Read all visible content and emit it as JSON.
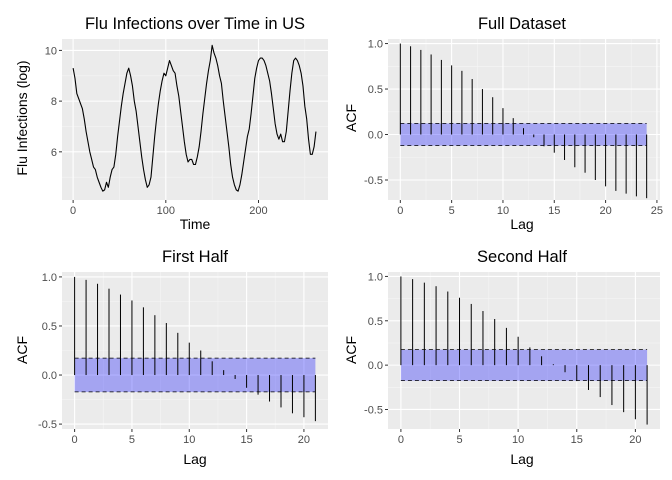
{
  "chart_data": [
    {
      "type": "line",
      "title": "Flu Infections over Time in US",
      "xlabel": "Time",
      "ylabel": "Flu Infections (log)",
      "xlim": [
        -12,
        275
      ],
      "ylim": [
        4.1,
        10.45
      ],
      "xticks": [
        0,
        100,
        200
      ],
      "yticks": [
        6,
        8,
        10
      ],
      "grid": true,
      "line_color": "#000000",
      "series": [
        {
          "x": [
            0,
            2,
            4,
            6,
            8,
            10,
            12,
            14,
            16,
            18,
            20,
            22,
            24,
            26,
            28,
            30,
            32,
            34,
            36,
            38,
            40,
            42,
            44,
            46,
            48,
            50,
            52,
            54,
            56,
            58,
            60,
            62,
            64,
            66,
            68,
            70,
            72,
            74,
            76,
            78,
            80,
            82,
            84,
            86,
            88,
            90,
            92,
            94,
            96,
            98,
            100,
            102,
            104,
            106,
            108,
            110,
            112,
            114,
            116,
            118,
            120,
            122,
            124,
            126,
            128,
            130,
            132,
            134,
            136,
            138,
            140,
            142,
            144,
            146,
            148,
            150,
            152,
            154,
            156,
            158,
            160,
            162,
            164,
            166,
            168,
            170,
            172,
            174,
            176,
            178,
            180,
            182,
            184,
            186,
            188,
            190,
            192,
            194,
            196,
            198,
            200,
            202,
            204,
            206,
            208,
            210,
            212,
            214,
            216,
            218,
            220,
            222,
            224,
            226,
            228,
            230,
            232,
            234,
            236,
            238,
            240,
            242,
            244,
            246,
            248,
            250,
            252,
            254,
            256,
            258,
            260,
            262
          ],
          "y": [
            9.3,
            8.9,
            8.3,
            8.1,
            7.9,
            7.7,
            7.3,
            6.8,
            6.4,
            6.0,
            5.7,
            5.4,
            5.3,
            5.0,
            4.8,
            4.6,
            4.45,
            4.5,
            4.8,
            4.6,
            5.0,
            5.3,
            5.4,
            5.9,
            6.6,
            7.2,
            7.8,
            8.3,
            8.7,
            9.1,
            9.3,
            9.0,
            8.6,
            8.0,
            7.6,
            7.0,
            6.4,
            5.8,
            5.3,
            4.9,
            4.6,
            4.7,
            5.0,
            5.8,
            6.6,
            7.3,
            7.9,
            8.4,
            8.8,
            9.1,
            9.0,
            9.3,
            9.6,
            9.4,
            9.2,
            9.1,
            8.6,
            8.2,
            7.6,
            7.0,
            6.4,
            5.9,
            5.6,
            5.7,
            5.7,
            5.5,
            5.5,
            5.8,
            6.2,
            6.8,
            7.5,
            8.1,
            8.7,
            9.2,
            9.6,
            10.2,
            9.9,
            9.7,
            9.4,
            9.0,
            8.7,
            8.0,
            7.4,
            6.8,
            6.2,
            5.5,
            5.0,
            4.7,
            4.5,
            4.45,
            4.7,
            5.1,
            5.6,
            6.1,
            6.6,
            6.9,
            7.5,
            8.2,
            8.9,
            9.3,
            9.6,
            9.7,
            9.7,
            9.6,
            9.4,
            9.1,
            8.8,
            8.3,
            7.7,
            7.1,
            6.7,
            6.5,
            6.7,
            6.4,
            6.4,
            6.8,
            7.6,
            8.4,
            9.1,
            9.6,
            9.7,
            9.6,
            9.4,
            9.1,
            8.6,
            7.8,
            7.3,
            6.5,
            5.9,
            5.9,
            6.2,
            6.8
          ]
        }
      ]
    },
    {
      "type": "bar",
      "title": "Full Dataset",
      "xlabel": "Lag",
      "ylabel": "ACF",
      "xlim": [
        -1.2,
        25.3
      ],
      "ylim": [
        -0.72,
        1.05
      ],
      "xticks": [
        0,
        5,
        10,
        15,
        20,
        25
      ],
      "yticks": [
        -0.5,
        0.0,
        0.5,
        1.0
      ],
      "grid": true,
      "confidence_band": [
        -0.122,
        0.122
      ],
      "band_color": "#0000ff",
      "lags": [
        0,
        1,
        2,
        3,
        4,
        5,
        6,
        7,
        8,
        9,
        10,
        11,
        12,
        13,
        14,
        15,
        16,
        17,
        18,
        19,
        20,
        21,
        22,
        23,
        24
      ],
      "values": [
        1.0,
        0.97,
        0.93,
        0.88,
        0.82,
        0.76,
        0.7,
        0.61,
        0.5,
        0.41,
        0.29,
        0.18,
        0.07,
        -0.03,
        -0.13,
        -0.2,
        -0.28,
        -0.36,
        -0.42,
        -0.5,
        -0.57,
        -0.62,
        -0.65,
        -0.68,
        -0.7
      ]
    },
    {
      "type": "bar",
      "title": "First Half",
      "xlabel": "Lag",
      "ylabel": "ACF",
      "xlim": [
        -1.1,
        22.1
      ],
      "ylim": [
        -0.55,
        1.05
      ],
      "xticks": [
        0,
        5,
        10,
        15,
        20
      ],
      "yticks": [
        -0.5,
        0.0,
        0.5,
        1.0
      ],
      "grid": true,
      "confidence_band": [
        -0.172,
        0.172
      ],
      "band_color": "#0000ff",
      "lags": [
        0,
        1,
        2,
        3,
        4,
        5,
        6,
        7,
        8,
        9,
        10,
        11,
        12,
        13,
        14,
        15,
        16,
        17,
        18,
        19,
        20,
        21
      ],
      "values": [
        1.0,
        0.97,
        0.93,
        0.88,
        0.82,
        0.76,
        0.69,
        0.61,
        0.53,
        0.43,
        0.33,
        0.25,
        0.14,
        0.05,
        -0.04,
        -0.13,
        -0.2,
        -0.27,
        -0.33,
        -0.39,
        -0.43,
        -0.47
      ]
    },
    {
      "type": "bar",
      "title": "Second Half",
      "xlabel": "Lag",
      "ylabel": "ACF",
      "xlim": [
        -1.1,
        22.1
      ],
      "ylim": [
        -0.72,
        1.05
      ],
      "xticks": [
        0,
        5,
        10,
        15,
        20
      ],
      "yticks": [
        -0.5,
        0.0,
        0.5,
        1.0
      ],
      "grid": true,
      "confidence_band": [
        -0.175,
        0.175
      ],
      "band_color": "#0000ff",
      "lags": [
        0,
        1,
        2,
        3,
        4,
        5,
        6,
        7,
        8,
        9,
        10,
        11,
        12,
        13,
        14,
        15,
        16,
        17,
        18,
        19,
        20,
        21
      ],
      "values": [
        1.0,
        0.97,
        0.93,
        0.89,
        0.83,
        0.76,
        0.69,
        0.61,
        0.52,
        0.42,
        0.32,
        0.2,
        0.1,
        0.01,
        -0.08,
        -0.18,
        -0.28,
        -0.36,
        -0.45,
        -0.53,
        -0.61,
        -0.67
      ]
    }
  ]
}
